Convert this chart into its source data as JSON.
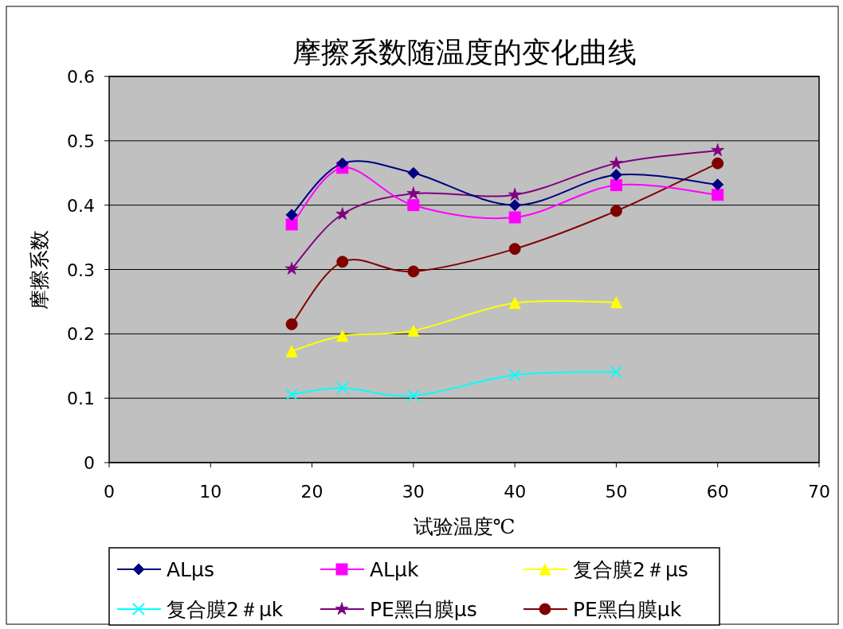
{
  "chart_data": {
    "type": "line",
    "title": "摩擦系数随温度的变化曲线",
    "xlabel": "试验温度℃",
    "ylabel": "摩擦系数",
    "xlim": [
      0,
      70
    ],
    "xticks": [
      0,
      10,
      20,
      30,
      40,
      50,
      60,
      70
    ],
    "ylim": [
      0,
      0.6
    ],
    "yticks": [
      0,
      0.1,
      0.2,
      0.3,
      0.4,
      0.5,
      0.6
    ],
    "grid": "y",
    "legend": "bottom",
    "series": [
      {
        "name": "ALμs",
        "color": "#000080",
        "marker": "diamond",
        "x": [
          18,
          23,
          30,
          40,
          50,
          60
        ],
        "values": [
          0.385,
          0.465,
          0.45,
          0.4,
          0.447,
          0.432
        ]
      },
      {
        "name": "ALμk",
        "color": "#ff00ff",
        "marker": "square",
        "x": [
          18,
          23,
          30,
          40,
          50,
          60
        ],
        "values": [
          0.37,
          0.458,
          0.4,
          0.381,
          0.431,
          0.416
        ]
      },
      {
        "name": "复合膜2＃μs",
        "color": "#ffff00",
        "marker": "triangle",
        "x": [
          18,
          23,
          30,
          40,
          50
        ],
        "values": [
          0.173,
          0.197,
          0.205,
          0.248,
          0.249
        ]
      },
      {
        "name": "复合膜2＃μk",
        "color": "#00ffff",
        "marker": "cross",
        "x": [
          18,
          23,
          30,
          40,
          50
        ],
        "values": [
          0.106,
          0.116,
          0.104,
          0.136,
          0.141
        ]
      },
      {
        "name": "PE黑白膜μs",
        "color": "#800080",
        "marker": "star",
        "x": [
          18,
          23,
          30,
          40,
          50,
          60
        ],
        "values": [
          0.301,
          0.386,
          0.418,
          0.416,
          0.465,
          0.485
        ]
      },
      {
        "name": "PE黑白膜μk",
        "color": "#800000",
        "marker": "circle",
        "x": [
          18,
          23,
          30,
          40,
          50,
          60
        ],
        "values": [
          0.215,
          0.312,
          0.297,
          0.332,
          0.391,
          0.465
        ]
      }
    ]
  }
}
